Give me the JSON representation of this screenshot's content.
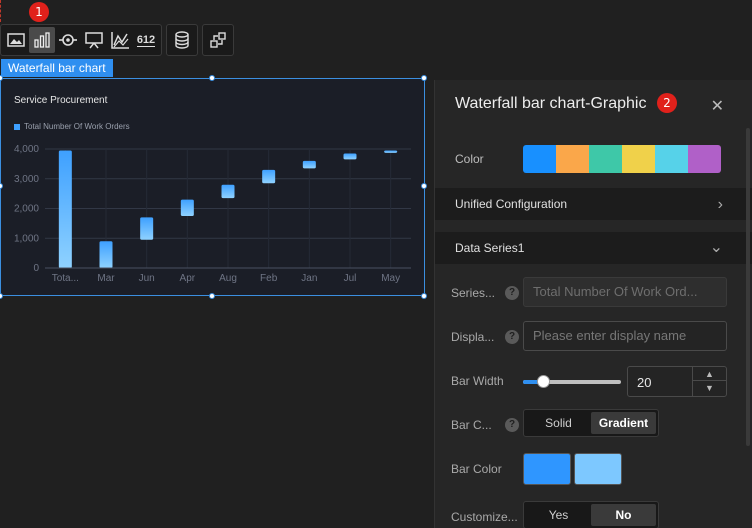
{
  "badges": {
    "first": "1",
    "second": "2"
  },
  "toolbar": {
    "buttons": [
      {
        "name": "image-icon"
      },
      {
        "name": "bar-chart-icon",
        "active": true
      },
      {
        "name": "target-icon"
      },
      {
        "name": "presentation-icon"
      },
      {
        "name": "line-chart-icon"
      },
      {
        "name": "number-icon",
        "glyph": "612"
      },
      {
        "name": "database-icon"
      },
      {
        "name": "share-icon"
      }
    ]
  },
  "component": {
    "label": "Waterfall bar chart"
  },
  "chart_data": {
    "type": "bar",
    "subtype": "waterfall",
    "title": "Service Procurement",
    "legend": [
      "Total Number Of Work Orders"
    ],
    "categories": [
      "Tota...",
      "Mar",
      "Jun",
      "Apr",
      "Aug",
      "Feb",
      "Jan",
      "Jul",
      "May"
    ],
    "series": [
      {
        "name": "Total Number Of Work Orders",
        "ranges": [
          [
            0,
            3950
          ],
          [
            0,
            900
          ],
          [
            950,
            1700
          ],
          [
            1750,
            2300
          ],
          [
            2350,
            2800
          ],
          [
            2850,
            3300
          ],
          [
            3350,
            3600
          ],
          [
            3650,
            3850
          ],
          [
            3870,
            3950
          ]
        ]
      }
    ],
    "yticks": [
      "0",
      "1,000",
      "2,000",
      "3,000",
      "4,000"
    ],
    "ylim": [
      0,
      4000
    ],
    "grid": true,
    "bar_color": "#3ea0ff"
  },
  "panel": {
    "title": "Waterfall bar chart-Graphic",
    "close_glyph": "✕",
    "color_label": "Color",
    "palette": [
      "#1890ff",
      "#faa74a",
      "#3ec8a8",
      "#f0d14a",
      "#56d2e9",
      "#b060c8"
    ],
    "unified_config": "Unified Configuration",
    "data_series": "Data Series1",
    "chevron_right": "›",
    "chevron_down": "⌄",
    "series_label": "Series...",
    "series_value": "Total Number Of Work Ord...",
    "display_label": "Displa...",
    "display_placeholder": "Please enter display name",
    "bar_width_label": "Bar Width",
    "bar_width_value": "20",
    "bar_width_fraction": 0.2,
    "up_arrow": "▲",
    "down_arrow": "▼",
    "bar_color_type_label": "Bar C...",
    "color_types": [
      "Solid",
      "Gradient"
    ],
    "selected_color_type": "Gradient",
    "bar_color_label": "Bar Color",
    "bar_colors": [
      "#2f96ff",
      "#7dc8ff"
    ],
    "customize_label": "Customize...",
    "customize_options": [
      "Yes",
      "No"
    ],
    "selected_customize": "No",
    "help_glyph": "?"
  }
}
